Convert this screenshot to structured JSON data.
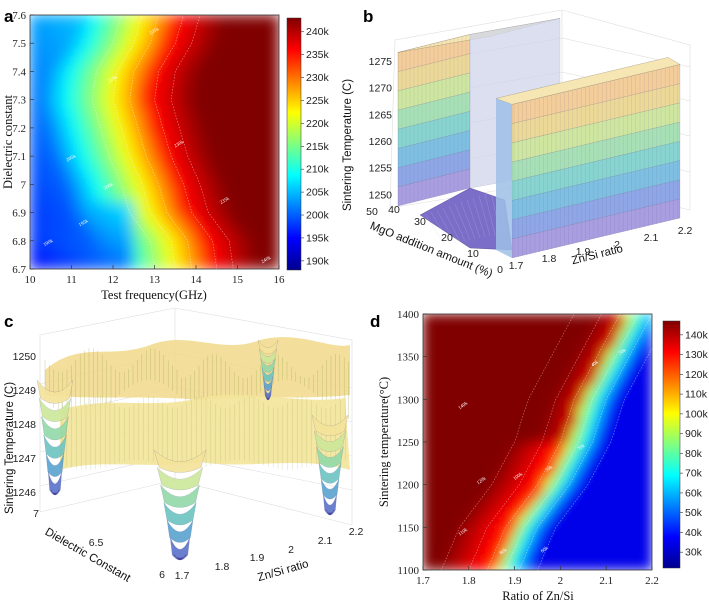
{
  "chart_data": [
    {
      "panel": "a",
      "type": "heatmap",
      "xlabel": "Test frequency(GHz)",
      "ylabel": "Dielectric constant",
      "x_ticks": [
        10,
        11,
        12,
        13,
        14,
        15,
        16
      ],
      "y_ticks": [
        6.7,
        6.8,
        6.9,
        7,
        7.1,
        7.2,
        7.3,
        7.4,
        7.5,
        7.6
      ],
      "xlim": [
        10,
        16
      ],
      "ylim": [
        6.7,
        7.6
      ],
      "colorbar_ticks": [
        "190k",
        "195k",
        "200k",
        "205k",
        "210k",
        "215k",
        "220k",
        "225k",
        "230k",
        "235k",
        "240k"
      ],
      "colorbar_range": [
        188,
        243
      ],
      "boundary_x_at_y": [
        [
          6.7,
          14.2
        ],
        [
          6.8,
          14.1
        ],
        [
          6.9,
          13.6
        ],
        [
          7.0,
          13.4
        ],
        [
          7.1,
          13.1
        ],
        [
          7.2,
          12.9
        ],
        [
          7.3,
          12.7
        ],
        [
          7.4,
          12.8
        ],
        [
          7.5,
          13.2
        ],
        [
          7.6,
          13.4
        ]
      ],
      "contour_labels": [
        "190k",
        "195k",
        "200k",
        "205k",
        "220k",
        "225k",
        "230k",
        "235k",
        "240k"
      ]
    },
    {
      "panel": "b",
      "type": "surface",
      "xlabel": "Zn/Si ratio",
      "ylabel": "MgO addition amount (%)",
      "zlabel": "Sintering Temperature (C)",
      "x_ticks": [
        "1.7",
        "1.8",
        "1.9",
        "2",
        "2.1",
        "2.2"
      ],
      "y_ticks": [
        "0",
        "10",
        "20",
        "30",
        "40",
        "50"
      ],
      "z_ticks": [
        "1250",
        "1255",
        "1260",
        "1265",
        "1270",
        "1275"
      ],
      "zlim": [
        1248,
        1278
      ]
    },
    {
      "panel": "c",
      "type": "surface",
      "xlabel": "Zn/Si ratio",
      "ylabel": "Dielectric Constant",
      "zlabel": "Sintering Temperature (C)",
      "x_ticks": [
        "1.7",
        "1.8",
        "1.9",
        "2",
        "2.1",
        "2.2"
      ],
      "y_ticks": [
        "6",
        "6.5",
        "7"
      ],
      "z_ticks": [
        "1246",
        "1247",
        "1248",
        "1249",
        "1250"
      ],
      "zlim": [
        1245.5,
        1250.5
      ]
    },
    {
      "panel": "d",
      "type": "heatmap",
      "xlabel": "Ratio of Zn/Si",
      "ylabel": "Sintering temperature(°C)",
      "x_ticks": [
        1.7,
        1.8,
        1.9,
        2,
        2.1,
        2.2
      ],
      "y_ticks": [
        1100,
        1150,
        1200,
        1250,
        1300,
        1350,
        1400
      ],
      "xlim": [
        1.7,
        2.2
      ],
      "ylim": [
        1100,
        1400
      ],
      "colorbar_ticks": [
        "30k",
        "40k",
        "50k",
        "60k",
        "70k",
        "80k",
        "90k",
        "100k",
        "110k",
        "120k",
        "130k",
        "140k"
      ],
      "colorbar_range": [
        22,
        147
      ],
      "boundary_x_at_y": [
        [
          1100,
          1.86
        ],
        [
          1150,
          1.9
        ],
        [
          1200,
          1.97
        ],
        [
          1250,
          2.02
        ],
        [
          1300,
          2.05
        ],
        [
          1350,
          2.1
        ],
        [
          1400,
          2.15
        ]
      ],
      "contour_labels": [
        "140k",
        "130k",
        "120k",
        "110k",
        "100k",
        "90k",
        "80k",
        "70k",
        "60k",
        "50k",
        "40k",
        "30k"
      ]
    }
  ],
  "panels": {
    "a": {
      "letter": "a"
    },
    "b": {
      "letter": "b"
    },
    "c": {
      "letter": "c"
    },
    "d": {
      "letter": "d"
    }
  },
  "colormap": "jet"
}
